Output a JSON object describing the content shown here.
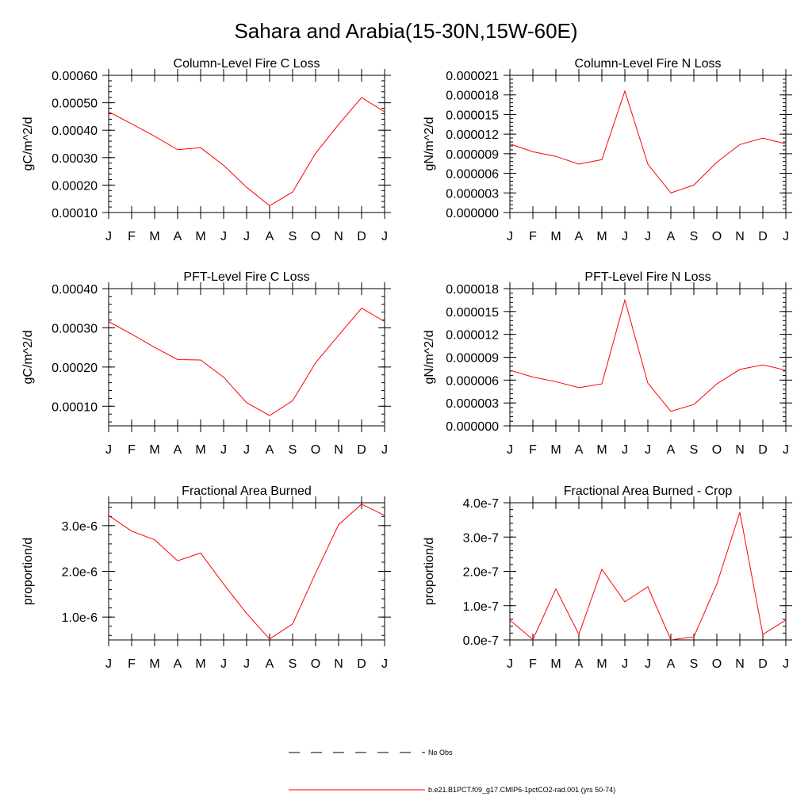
{
  "title": "Sahara and Arabia(15-30N,15W-60E)",
  "line_color": "#ff0000",
  "months": [
    "J",
    "F",
    "M",
    "A",
    "M",
    "J",
    "J",
    "A",
    "S",
    "O",
    "N",
    "D",
    "J"
  ],
  "legend": [
    {
      "label": "No Obs",
      "style": "dashed",
      "color": "#000000"
    },
    {
      "label": "b.e21.B1PCT.f09_g17.CMIP6-1pctCO2-rad.001 (yrs 50-74)",
      "style": "solid",
      "color": "#ff0000"
    }
  ],
  "chart_data": [
    {
      "type": "line",
      "title": "Column-Level Fire C Loss",
      "ylabel": "gC/m^2/d",
      "ylim": [
        0.0001,
        0.0006
      ],
      "yticks": [
        0.0001,
        0.0002,
        0.0003,
        0.0004,
        0.0005,
        0.0006
      ],
      "ytick_labels": [
        "0.00010",
        "0.00020",
        "0.00030",
        "0.00040",
        "0.00050",
        "0.00060"
      ],
      "values": [
        0.000467,
        0.000423,
        0.000378,
        0.000329,
        0.000336,
        0.000272,
        0.000192,
        0.000125,
        0.000175,
        0.000316,
        0.000421,
        0.000519,
        0.000467
      ]
    },
    {
      "type": "line",
      "title": "Column-Level Fire N Loss",
      "ylabel": "gN/m^2/d",
      "ylim": [
        0.0,
        2.1e-05
      ],
      "yticks": [
        0.0,
        3e-06,
        6e-06,
        9e-06,
        1.2e-05,
        1.5e-05,
        1.8e-05,
        2.1e-05
      ],
      "ytick_labels": [
        "0.000000",
        "0.000003",
        "0.000006",
        "0.000009",
        "0.000012",
        "0.000015",
        "0.000018",
        "0.000021"
      ],
      "values": [
        1.05e-05,
        9.3e-06,
        8.6e-06,
        7.4e-06,
        8.1e-06,
        1.86e-05,
        7.4e-06,
        3e-06,
        4.2e-06,
        7.7e-06,
        1.04e-05,
        1.14e-05,
        1.05e-05
      ]
    },
    {
      "type": "line",
      "title": "PFT-Level Fire C Loss",
      "ylabel": "gC/m^2/d",
      "ylim": [
        5e-05,
        0.0004
      ],
      "yticks": [
        0.0001,
        0.0002,
        0.0003,
        0.0004
      ],
      "ytick_labels": [
        "0.00010",
        "0.00020",
        "0.00030",
        "0.00040"
      ],
      "values": [
        0.000316,
        0.000284,
        0.00025,
        0.000219,
        0.000218,
        0.000174,
        0.000109,
        7.6e-05,
        0.000114,
        0.000211,
        0.000281,
        0.00035,
        0.000316
      ]
    },
    {
      "type": "line",
      "title": "PFT-Level Fire N Loss",
      "ylabel": "gN/m^2/d",
      "ylim": [
        0.0,
        1.8e-05
      ],
      "yticks": [
        0.0,
        3e-06,
        6e-06,
        9e-06,
        1.2e-05,
        1.5e-05,
        1.8e-05
      ],
      "ytick_labels": [
        "0.000000",
        "0.000003",
        "0.000006",
        "0.000009",
        "0.000012",
        "0.000015",
        "0.000018"
      ],
      "values": [
        7.3e-06,
        6.4e-06,
        5.8e-06,
        5e-06,
        5.5e-06,
        1.65e-05,
        5.6e-06,
        1.9e-06,
        2.8e-06,
        5.5e-06,
        7.4e-06,
        8e-06,
        7.3e-06
      ]
    },
    {
      "type": "line",
      "title": "Fractional Area Burned",
      "ylabel": "proportion/d",
      "ylim": [
        5e-07,
        3.5e-06
      ],
      "yticks": [
        1e-06,
        2e-06,
        3e-06
      ],
      "ytick_labels": [
        "1.0e-6",
        "2.0e-6",
        "3.0e-6"
      ],
      "values": [
        3.22e-06,
        2.88e-06,
        2.69e-06,
        2.23e-06,
        2.4e-06,
        1.72e-06,
        1.08e-06,
        5.2e-07,
        8.5e-07,
        1.96e-06,
        3.02e-06,
        3.47e-06,
        3.22e-06
      ]
    },
    {
      "type": "line",
      "title": "Fractional Area Burned - Crop",
      "ylabel": "proportion/d",
      "ylim": [
        0.0,
        4e-07
      ],
      "yticks": [
        0.0,
        1e-07,
        2e-07,
        3e-07,
        4e-07
      ],
      "ytick_labels": [
        "0.0e-7",
        "1.0e-7",
        "2.0e-7",
        "3.0e-7",
        "4.0e-7"
      ],
      "values": [
        5.8e-08,
        1e-09,
        1.49e-07,
        1.6e-08,
        2.06e-07,
        1.11e-07,
        1.55e-07,
        0.0,
        9e-09,
        1.63e-07,
        3.72e-07,
        1.6e-08,
        5.8e-08
      ]
    }
  ]
}
